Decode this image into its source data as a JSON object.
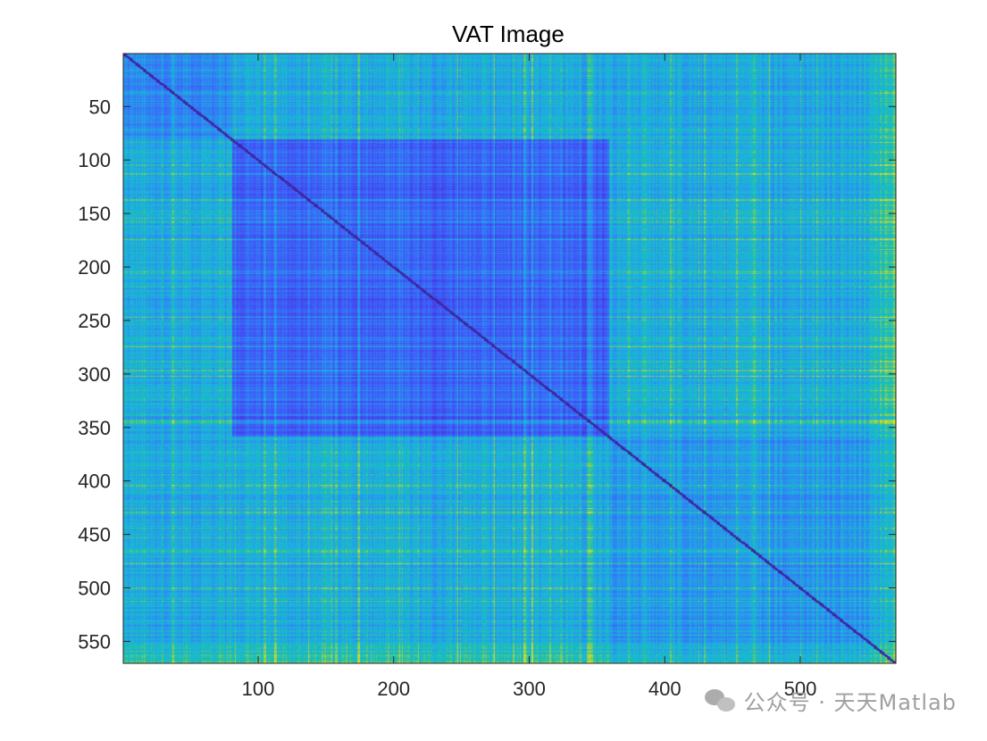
{
  "chart_data": {
    "type": "heatmap",
    "title": "VAT Image",
    "xlabel": "",
    "ylabel": "",
    "xlim": [
      0.5,
      570.5
    ],
    "ylim": [
      0.5,
      570.5
    ],
    "y_direction": "reversed",
    "colormap": "parula",
    "grid": false,
    "x_ticks": [
      100,
      200,
      300,
      400,
      500
    ],
    "x_tick_labels": [
      "100",
      "200",
      "300",
      "400",
      "500"
    ],
    "y_ticks": [
      50,
      100,
      150,
      200,
      250,
      300,
      350,
      400,
      450,
      500,
      550
    ],
    "y_tick_labels": [
      "50",
      "100",
      "150",
      "200",
      "250",
      "300",
      "350",
      "400",
      "450",
      "500",
      "550"
    ],
    "n": 570,
    "cluster_blocks": [
      {
        "start": 1,
        "end": 80
      },
      {
        "start": 81,
        "end": 358
      },
      {
        "start": 359,
        "end": 570
      }
    ],
    "colors": {
      "low": "#3e26a8",
      "mid": "#2b8df0",
      "high": "#13beb8",
      "max": "#e1e021",
      "diagonal": "#3d2a9e"
    }
  },
  "watermark": {
    "text": "公众号 · 天天Matlab",
    "icon": "wechat-icon"
  }
}
